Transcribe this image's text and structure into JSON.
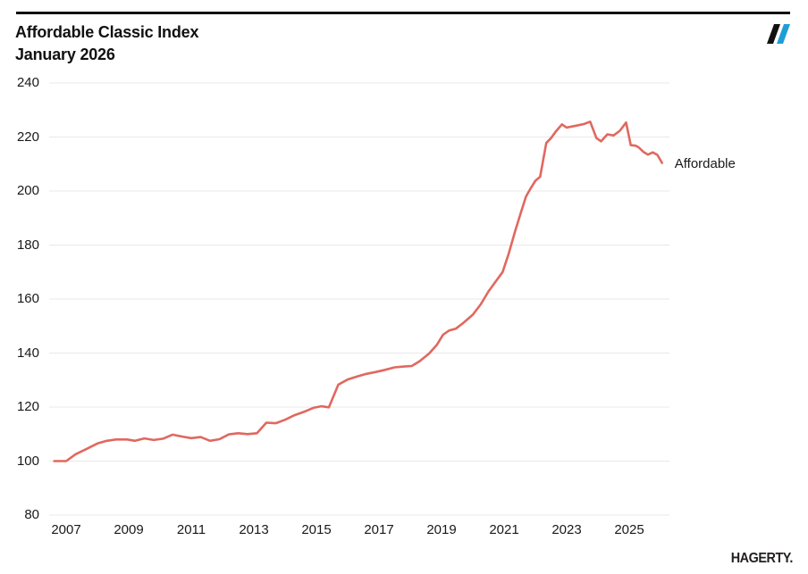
{
  "header": {
    "title_line1": "Affordable Classic Index",
    "title_line2": "January 2026"
  },
  "logo": {
    "name": "hagerty-double-slash-mark",
    "slash_black": "#111111",
    "slash_blue": "#1f9dd8"
  },
  "footer": {
    "brand": "HAGERTY."
  },
  "chart_data": {
    "type": "line",
    "title": "Affordable Classic Index",
    "subtitle": "January 2026",
    "xlabel": "",
    "ylabel": "",
    "ylim": [
      80,
      240
    ],
    "xlim": [
      2006.5,
      2026.4
    ],
    "yticks": [
      240,
      220,
      200,
      180,
      160,
      140,
      120,
      100,
      80
    ],
    "xticks": [
      2007,
      2009,
      2011,
      2013,
      2015,
      2017,
      2019,
      2021,
      2023,
      2025
    ],
    "grid": "horizontal-only",
    "grid_color": "#e8e8e8",
    "legend_position": "inline-right-of-line-end",
    "series": [
      {
        "name": "Affordable",
        "color": "#e0685f",
        "points": [
          [
            2006.62,
            100
          ],
          [
            2007.0,
            100
          ],
          [
            2007.3,
            102.5
          ],
          [
            2007.65,
            104.5
          ],
          [
            2008.0,
            106.5
          ],
          [
            2008.3,
            107.5
          ],
          [
            2008.6,
            108
          ],
          [
            2008.95,
            108
          ],
          [
            2009.2,
            107.5
          ],
          [
            2009.5,
            108.4
          ],
          [
            2009.8,
            107.8
          ],
          [
            2010.1,
            108.3
          ],
          [
            2010.4,
            109.8
          ],
          [
            2010.7,
            109.1
          ],
          [
            2011.0,
            108.5
          ],
          [
            2011.3,
            108.9
          ],
          [
            2011.6,
            107.5
          ],
          [
            2011.9,
            108.1
          ],
          [
            2012.2,
            109.9
          ],
          [
            2012.5,
            110.3
          ],
          [
            2012.8,
            110.0
          ],
          [
            2013.1,
            110.3
          ],
          [
            2013.4,
            114.2
          ],
          [
            2013.7,
            114.0
          ],
          [
            2014.0,
            115.3
          ],
          [
            2014.3,
            117.0
          ],
          [
            2014.6,
            118.2
          ],
          [
            2014.9,
            119.7
          ],
          [
            2015.15,
            120.3
          ],
          [
            2015.4,
            119.9
          ],
          [
            2015.7,
            128.3
          ],
          [
            2016.0,
            130.2
          ],
          [
            2016.3,
            131.3
          ],
          [
            2016.6,
            132.3
          ],
          [
            2016.9,
            133.0
          ],
          [
            2017.2,
            133.8
          ],
          [
            2017.5,
            134.7
          ],
          [
            2017.8,
            135.0
          ],
          [
            2018.05,
            135.2
          ],
          [
            2018.3,
            137.0
          ],
          [
            2018.6,
            139.8
          ],
          [
            2018.85,
            143.0
          ],
          [
            2019.05,
            146.8
          ],
          [
            2019.25,
            148.4
          ],
          [
            2019.45,
            149.0
          ],
          [
            2019.7,
            151.2
          ],
          [
            2020.0,
            154.2
          ],
          [
            2020.25,
            158.0
          ],
          [
            2020.5,
            162.8
          ],
          [
            2020.75,
            166.8
          ],
          [
            2020.95,
            170.0
          ],
          [
            2021.15,
            177.0
          ],
          [
            2021.35,
            185.0
          ],
          [
            2021.55,
            192.5
          ],
          [
            2021.7,
            198.0
          ],
          [
            2021.85,
            201.0
          ],
          [
            2022.0,
            203.8
          ],
          [
            2022.15,
            205.3
          ],
          [
            2022.35,
            217.8
          ],
          [
            2022.5,
            219.6
          ],
          [
            2022.65,
            222.0
          ],
          [
            2022.85,
            224.7
          ],
          [
            2023.0,
            223.5
          ],
          [
            2023.3,
            224.2
          ],
          [
            2023.55,
            224.8
          ],
          [
            2023.75,
            225.7
          ],
          [
            2023.95,
            219.6
          ],
          [
            2024.1,
            218.4
          ],
          [
            2024.3,
            221.0
          ],
          [
            2024.5,
            220.6
          ],
          [
            2024.7,
            222.3
          ],
          [
            2024.9,
            225.4
          ],
          [
            2025.05,
            217.0
          ],
          [
            2025.2,
            216.8
          ],
          [
            2025.3,
            216.2
          ],
          [
            2025.45,
            214.5
          ],
          [
            2025.6,
            213.5
          ],
          [
            2025.75,
            214.3
          ],
          [
            2025.9,
            213.4
          ],
          [
            2026.05,
            210.4
          ]
        ]
      }
    ]
  }
}
